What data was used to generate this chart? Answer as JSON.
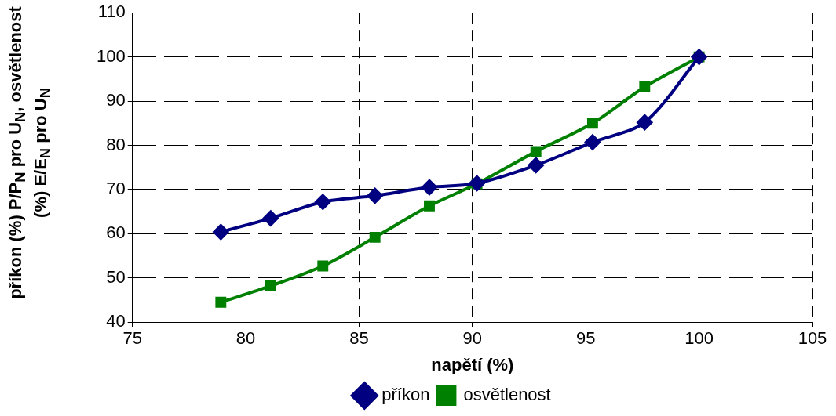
{
  "chart_data": {
    "type": "line",
    "xlabel": "napětí (%)",
    "ylabel": "příkon (%) P/P$_{N}$ pro U$_{N}$, osvětlenost (%) E/E$_{N}$ pro U$_{N}$",
    "xlim": [
      75,
      105
    ],
    "xticks": [
      75,
      80,
      85,
      90,
      95,
      100,
      105
    ],
    "ylim": [
      40,
      110
    ],
    "yticks": [
      40,
      50,
      60,
      70,
      80,
      90,
      100,
      110
    ],
    "grid": true,
    "legend": "bottom",
    "series": [
      {
        "name": "příkon",
        "color": "#000080",
        "marker": "diamond",
        "x": [
          78.9,
          81.1,
          83.4,
          85.7,
          88.1,
          90.2,
          92.8,
          95.3,
          97.6,
          100
        ],
        "values": [
          60.4,
          63.5,
          67.2,
          68.6,
          70.5,
          71.4,
          75.5,
          80.7,
          85.2,
          100
        ]
      },
      {
        "name": "osvětlenost",
        "color": "#008000",
        "marker": "square",
        "x": [
          78.9,
          81.1,
          83.4,
          85.7,
          88.1,
          90.2,
          92.8,
          95.3,
          97.6,
          100
        ],
        "values": [
          44.5,
          48.2,
          52.7,
          59.2,
          66.3,
          71.3,
          78.6,
          85.0,
          93.2,
          100
        ]
      }
    ]
  }
}
